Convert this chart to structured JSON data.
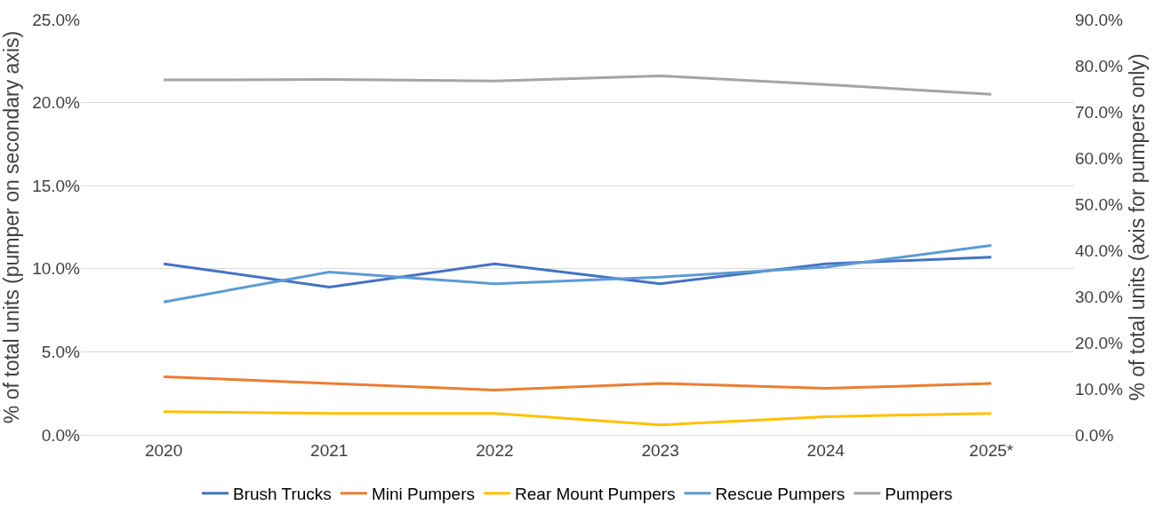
{
  "chart_data": {
    "type": "line",
    "ylabel": "% of total units (pumper on secondary axis)",
    "y2label": "% of total units (axis for pumpers only)",
    "categories": [
      "2020",
      "2021",
      "2022",
      "2023",
      "2024",
      "2025*"
    ],
    "series": [
      {
        "name": "Brush Trucks",
        "color": "#4472c4",
        "values": [
          10.3,
          8.9,
          10.3,
          9.1,
          10.3,
          10.7
        ]
      },
      {
        "name": "Mini Pumpers",
        "color": "#ed7d31",
        "values": [
          3.5,
          3.1,
          2.7,
          3.1,
          2.8,
          3.1
        ]
      },
      {
        "name": "Rear Mount Pumpers",
        "color": "#ffc000",
        "values": [
          1.4,
          1.3,
          1.3,
          0.6,
          1.1,
          1.3
        ]
      },
      {
        "name": "Rescue Pumpers",
        "color": "#5b9bd5",
        "values": [
          8.0,
          9.8,
          9.1,
          9.5,
          10.1,
          11.4
        ]
      },
      {
        "name": "Pumpers",
        "color": "#a5a5a5",
        "axis": "y2",
        "values": [
          76.9,
          77.0,
          76.7,
          77.8,
          75.9,
          73.8
        ]
      }
    ],
    "ylim": [
      0,
      25
    ],
    "yticks": [
      {
        "value": 0,
        "label": "0.0%"
      },
      {
        "value": 5,
        "label": "5.0%"
      },
      {
        "value": 10,
        "label": "10.0%"
      },
      {
        "value": 15,
        "label": "15.0%"
      },
      {
        "value": 20,
        "label": "20.0%"
      },
      {
        "value": 25,
        "label": "25.0%"
      }
    ],
    "y2lim": [
      0,
      90
    ],
    "y2ticks": [
      {
        "value": 0,
        "label": "0.0%"
      },
      {
        "value": 10,
        "label": "10.0%"
      },
      {
        "value": 20,
        "label": "20.0%"
      },
      {
        "value": 30,
        "label": "30.0%"
      },
      {
        "value": 40,
        "label": "40.0%"
      },
      {
        "value": 50,
        "label": "50.0%"
      },
      {
        "value": 60,
        "label": "60.0%"
      },
      {
        "value": 70,
        "label": "70.0%"
      },
      {
        "value": 80,
        "label": "80.0%"
      },
      {
        "value": 90,
        "label": "90.0%"
      }
    ],
    "grid": "y",
    "legend": "bottom",
    "marker": "none",
    "line_style": "solid"
  }
}
